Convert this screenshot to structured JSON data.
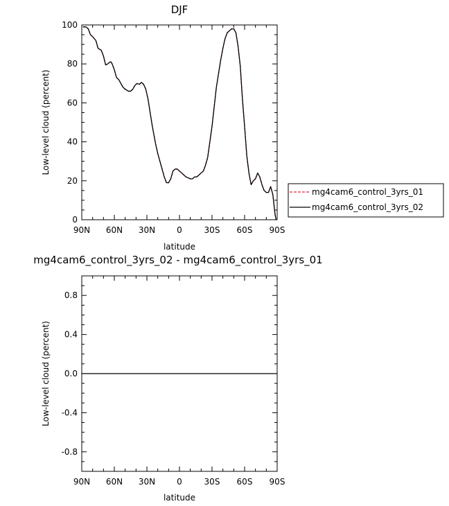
{
  "chart_data": [
    {
      "type": "line",
      "title": "DJF",
      "xlabel": "latitude",
      "ylabel": "Low-level cloud (percent)",
      "xlim": [
        90,
        -90
      ],
      "ylim": [
        0,
        100
      ],
      "x_ticks": [
        90,
        60,
        30,
        0,
        -30,
        -60,
        -90
      ],
      "x_tick_labels": [
        "90N",
        "60N",
        "30N",
        "0",
        "30S",
        "60S",
        "90S"
      ],
      "y_ticks": [
        0,
        20,
        40,
        60,
        80,
        100
      ],
      "y_tick_labels": [
        "0",
        "20",
        "40",
        "60",
        "80",
        "100"
      ],
      "grid": false,
      "legend_position": "right",
      "x": [
        89,
        86,
        84,
        82,
        80,
        77,
        75,
        72,
        70,
        68,
        66,
        64,
        63,
        62,
        60,
        58,
        56,
        54,
        52,
        50,
        47,
        45,
        43,
        41,
        39,
        37,
        35,
        33,
        31,
        29,
        27,
        25,
        22,
        20,
        18,
        16,
        14,
        12,
        10,
        8,
        6,
        4,
        2,
        0,
        -2,
        -4,
        -6,
        -8,
        -10,
        -12,
        -14,
        -16,
        -18,
        -20,
        -22,
        -24,
        -26,
        -28,
        -30,
        -32,
        -34,
        -36,
        -38,
        -40,
        -42,
        -44,
        -46,
        -48,
        -50,
        -52,
        -54,
        -56,
        -58,
        -60,
        -62,
        -64,
        -66,
        -68,
        -70,
        -72,
        -74,
        -76,
        -78,
        -80,
        -82,
        -84,
        -86,
        -87,
        -88,
        -89
      ],
      "series": [
        {
          "name": "mg4cam6_control_3yrs_01",
          "color": "#e8202a",
          "dash": "dashed",
          "values": [
            99,
            99,
            98,
            95,
            94,
            92,
            88,
            87,
            84,
            79.5,
            80,
            81,
            81,
            80,
            77,
            73,
            72,
            70,
            68,
            67,
            66,
            66,
            67,
            69,
            70,
            69.5,
            70.5,
            69.5,
            67,
            62,
            55,
            48,
            39,
            34,
            30,
            26,
            22,
            19,
            19,
            21,
            25,
            26,
            26,
            25,
            24,
            23,
            22,
            21.5,
            21,
            21,
            22,
            22,
            23,
            24,
            25,
            28,
            32,
            40,
            48,
            58,
            68,
            75,
            82,
            88,
            93,
            96,
            97,
            98,
            98,
            96,
            89,
            79,
            62,
            48,
            33,
            24,
            18,
            20,
            21,
            24,
            22,
            18,
            15,
            14,
            14,
            17,
            13,
            8,
            3,
            0
          ]
        },
        {
          "name": "mg4cam6_control_3yrs_02",
          "color": "#000000",
          "dash": "solid",
          "values": [
            99,
            99,
            98,
            95,
            94,
            92,
            88,
            87,
            84,
            79.5,
            80,
            81,
            81,
            80,
            77,
            73,
            72,
            70,
            68,
            67,
            66,
            66,
            67,
            69,
            70,
            69.5,
            70.5,
            69.5,
            67,
            62,
            55,
            48,
            39,
            34,
            30,
            26,
            22,
            19,
            19,
            21,
            25,
            26,
            26,
            25,
            24,
            23,
            22,
            21.5,
            21,
            21,
            22,
            22,
            23,
            24,
            25,
            28,
            32,
            40,
            48,
            58,
            68,
            75,
            82,
            88,
            93,
            96,
            97,
            98,
            98,
            96,
            89,
            79,
            62,
            48,
            33,
            24,
            18,
            20,
            21,
            24,
            22,
            18,
            15,
            14,
            14,
            17,
            13,
            8,
            3,
            0
          ]
        }
      ]
    },
    {
      "type": "line",
      "title": "mg4cam6_control_3yrs_02 - mg4cam6_control_3yrs_01",
      "xlabel": "latitude",
      "ylabel": "Low-level cloud (percent)",
      "xlim": [
        90,
        -90
      ],
      "ylim": [
        -1,
        1
      ],
      "x_ticks": [
        90,
        60,
        30,
        0,
        -30,
        -60,
        -90
      ],
      "x_tick_labels": [
        "90N",
        "60N",
        "30N",
        "0",
        "30S",
        "60S",
        "90S"
      ],
      "y_ticks": [
        -0.8,
        -0.4,
        0.0,
        0.4,
        0.8
      ],
      "y_tick_labels": [
        "-0.8",
        "-0.4",
        "0.0",
        "0.4",
        "0.8"
      ],
      "grid": false,
      "x": [
        90,
        -90
      ],
      "series": [
        {
          "color": "#000000",
          "dash": "solid",
          "values": [
            0,
            0
          ]
        }
      ]
    }
  ]
}
